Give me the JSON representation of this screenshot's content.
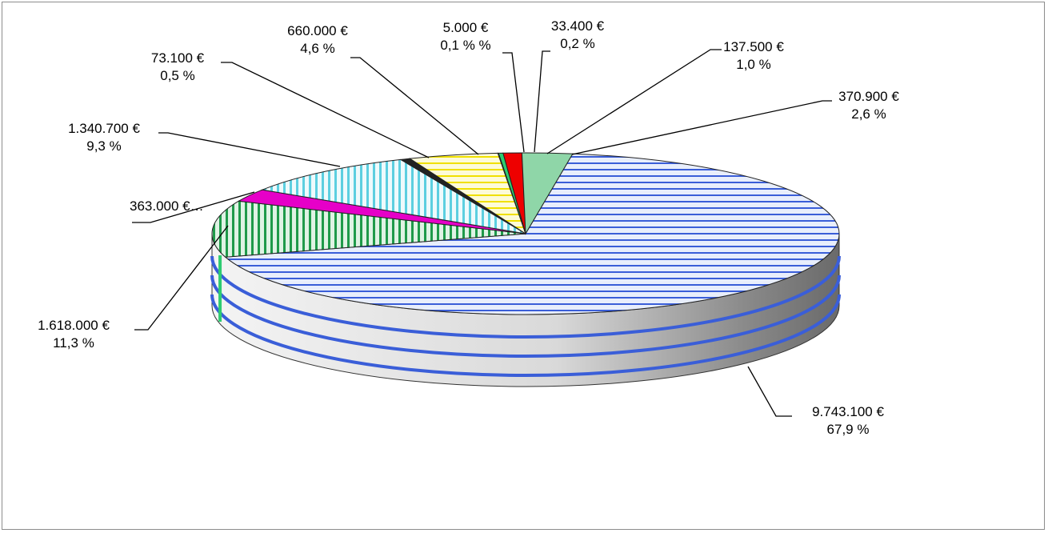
{
  "chart_data": {
    "type": "pie",
    "variant": "3d",
    "title": "",
    "slices": [
      {
        "value": 9743100,
        "value_label": "9.743.100 €",
        "percent_label": "67,9 %",
        "color": "#3a5ed8",
        "pattern": "h"
      },
      {
        "value": 1618000,
        "value_label": "1.618.000 €",
        "percent_label": "11,3 %",
        "color": "#1f9a4a",
        "pattern": "v"
      },
      {
        "value": 363000,
        "value_label": "363.000 €…",
        "percent_label": "",
        "color": "#e600c8",
        "pattern": "solid"
      },
      {
        "value": 1340700,
        "value_label": "1.340.700 €",
        "percent_label": "9,3 %",
        "color": "#5ccfe0",
        "pattern": "v"
      },
      {
        "value": 73100,
        "value_label": "73.100 €",
        "percent_label": "0,5 %",
        "color": "#222222",
        "pattern": "solid"
      },
      {
        "value": 660000,
        "value_label": "660.000 €",
        "percent_label": "4,6 %",
        "color": "#f0e000",
        "pattern": "h"
      },
      {
        "value": 5000,
        "value_label": "5.000 €",
        "percent_label": "0,1 % %",
        "color": "#7a3a10",
        "pattern": "solid"
      },
      {
        "value": 33400,
        "value_label": "33.400 €",
        "percent_label": "0,2 %",
        "color": "#2ecc71",
        "pattern": "solid"
      },
      {
        "value": 137500,
        "value_label": "137.500 €",
        "percent_label": "1,0 %",
        "color": "#ee0000",
        "pattern": "solid"
      },
      {
        "value": 370900,
        "value_label": "370.900 €",
        "percent_label": "2,6 %",
        "color": "#8fd6a8",
        "pattern": "solid"
      }
    ],
    "legend": "none"
  }
}
